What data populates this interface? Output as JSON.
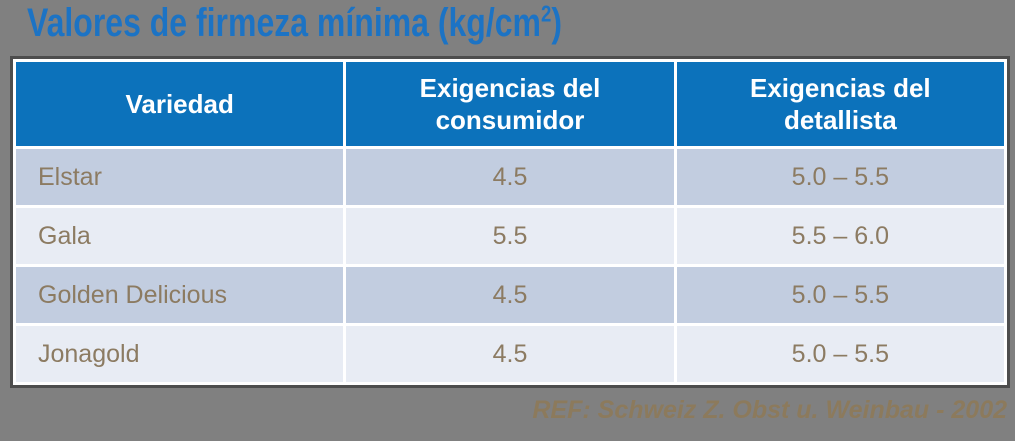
{
  "slide": {
    "background_color": "#808080"
  },
  "title": {
    "text": "Valores de firmeza mínima (kg/cm",
    "superscript": "2",
    "suffix": ")",
    "color": "#1c73c4"
  },
  "table": {
    "columns": [
      {
        "label": "Variedad"
      },
      {
        "label": "Exigencias del consumidor"
      },
      {
        "label": "Exigencias del detallista"
      }
    ],
    "rows": [
      {
        "variedad": "Elstar",
        "consumidor": "4.5",
        "detallista": "5.0 – 5.5"
      },
      {
        "variedad": "Gala",
        "consumidor": "5.5",
        "detallista": "5.5 – 6.0"
      },
      {
        "variedad": "Golden Delicious",
        "consumidor": "4.5",
        "detallista": "5.0 – 5.5"
      },
      {
        "variedad": "Jonagold",
        "consumidor": "4.5",
        "detallista": "5.0 – 5.5"
      }
    ],
    "colors": {
      "header_bg": "#0c72bb",
      "header_text": "#ffffff",
      "band_dark": "#c2cde0",
      "band_light": "#e8ecf4",
      "cell_text": "#8c7b62",
      "outer_border": "#4d4d4d",
      "gridline": "#ffffff"
    }
  },
  "footer": {
    "reference": "REF: Schweiz Z. Obst u. Weinbau - 2002",
    "color": "#8c7a5c"
  }
}
